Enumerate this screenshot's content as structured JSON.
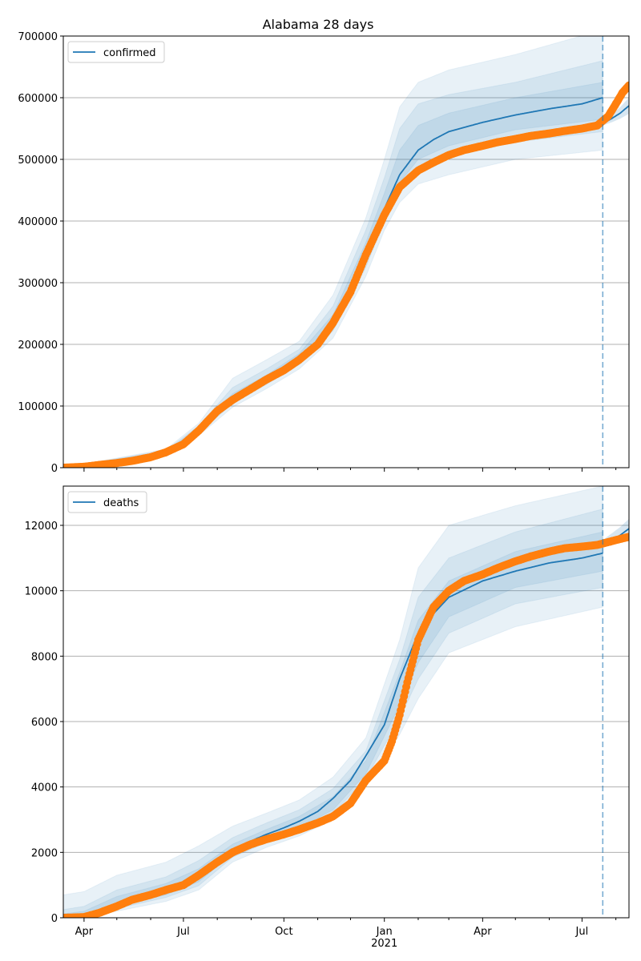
{
  "title": "Alabama 28 days",
  "colors": {
    "model": "#1f77b4",
    "observed": "#ff7f0e",
    "band": "#1f77b4",
    "grid": "#b0b0b0",
    "vline": "#1f77b4"
  },
  "x_axis": {
    "ticks": [
      "Apr",
      "Jul",
      "Oct",
      "Jan",
      "Apr",
      "Jul"
    ],
    "year_label": "2021",
    "xlim": [
      "2020-03-13",
      "2021-08-13"
    ],
    "forecast_start": "2021-07-20"
  },
  "chart_data": [
    {
      "type": "line",
      "series_label": "confirmed",
      "legend": "top-left",
      "grid": "horizontal",
      "ylim": [
        0,
        700000
      ],
      "yticks": [
        "0",
        "100000",
        "200000",
        "300000",
        "400000",
        "500000",
        "600000",
        "700000"
      ],
      "model_median": {
        "x": [
          "2020-03-13",
          "2020-04-15",
          "2020-05-15",
          "2020-06-15",
          "2020-07-01",
          "2020-07-15",
          "2020-08-01",
          "2020-08-15",
          "2020-09-01",
          "2020-09-15",
          "2020-10-01",
          "2020-10-15",
          "2020-11-01",
          "2020-11-15",
          "2020-12-01",
          "2020-12-15",
          "2021-01-01",
          "2021-01-15",
          "2021-02-01",
          "2021-02-15",
          "2021-03-01",
          "2021-04-01",
          "2021-05-01",
          "2021-06-01",
          "2021-07-01",
          "2021-07-20"
        ],
        "y": [
          0,
          5000,
          12000,
          25000,
          40000,
          62000,
          95000,
          112000,
          130000,
          145000,
          160000,
          178000,
          205000,
          240000,
          290000,
          350000,
          420000,
          475000,
          515000,
          532000,
          545000,
          560000,
          572000,
          582000,
          590000,
          600000
        ]
      },
      "bands": [
        {
          "x": [
            "2020-03-13",
            "2020-06-15",
            "2020-07-15",
            "2020-08-15",
            "2020-09-15",
            "2020-10-15",
            "2020-11-15",
            "2020-12-15",
            "2021-01-01",
            "2021-01-15",
            "2021-02-01",
            "2021-03-01",
            "2021-05-01",
            "2021-07-20"
          ],
          "lower": [
            0,
            20000,
            52000,
            98000,
            128000,
            160000,
            210000,
            310000,
            385000,
            430000,
            460000,
            475000,
            500000,
            515000
          ],
          "upper": [
            0,
            30000,
            72000,
            145000,
            175000,
            205000,
            280000,
            405000,
            500000,
            585000,
            625000,
            645000,
            670000,
            710000
          ]
        },
        {
          "x": [
            "2020-03-13",
            "2020-06-15",
            "2020-07-15",
            "2020-08-15",
            "2020-09-15",
            "2020-10-15",
            "2020-11-15",
            "2020-12-15",
            "2021-01-01",
            "2021-01-15",
            "2021-02-01",
            "2021-03-01",
            "2021-05-01",
            "2021-07-20"
          ],
          "lower": [
            0,
            22000,
            56000,
            104000,
            135000,
            167000,
            222000,
            325000,
            400000,
            450000,
            485000,
            505000,
            528000,
            545000
          ],
          "upper": [
            0,
            28000,
            68000,
            130000,
            160000,
            192000,
            262000,
            385000,
            470000,
            550000,
            590000,
            605000,
            625000,
            660000
          ]
        },
        {
          "x": [
            "2020-03-13",
            "2020-06-15",
            "2020-07-15",
            "2020-08-15",
            "2020-09-15",
            "2020-10-15",
            "2020-11-15",
            "2020-12-15",
            "2021-01-01",
            "2021-01-15",
            "2021-02-01",
            "2021-03-01",
            "2021-05-01",
            "2021-07-20"
          ],
          "lower": [
            0,
            23500,
            59000,
            108000,
            140000,
            172000,
            232000,
            338000,
            410000,
            462000,
            500000,
            522000,
            548000,
            565000
          ],
          "upper": [
            0,
            26500,
            65000,
            120000,
            150000,
            185000,
            248000,
            365000,
            445000,
            515000,
            555000,
            575000,
            600000,
            625000
          ]
        }
      ],
      "forecast": {
        "x": [
          "2021-07-20",
          "2021-07-28",
          "2021-08-05",
          "2021-08-13"
        ],
        "y": [
          558000,
          566000,
          575000,
          587000
        ],
        "lower": [
          555000,
          560000,
          566000,
          574000
        ],
        "upper": [
          562000,
          572000,
          585000,
          600000
        ]
      },
      "observed": {
        "x": [
          "2020-03-13",
          "2020-04-01",
          "2020-04-15",
          "2020-05-01",
          "2020-05-15",
          "2020-06-01",
          "2020-06-15",
          "2020-07-01",
          "2020-07-15",
          "2020-08-01",
          "2020-08-15",
          "2020-09-01",
          "2020-09-15",
          "2020-10-01",
          "2020-10-15",
          "2020-11-01",
          "2020-11-15",
          "2020-12-01",
          "2020-12-15",
          "2021-01-01",
          "2021-01-15",
          "2021-02-01",
          "2021-02-15",
          "2021-03-01",
          "2021-03-15",
          "2021-04-01",
          "2021-04-15",
          "2021-05-01",
          "2021-05-15",
          "2021-06-01",
          "2021-06-15",
          "2021-07-01",
          "2021-07-15",
          "2021-07-25",
          "2021-08-01",
          "2021-08-07",
          "2021-08-13"
        ],
        "y": [
          0,
          1500,
          4500,
          7500,
          11000,
          17000,
          25000,
          38000,
          60000,
          92000,
          110000,
          128000,
          143000,
          158000,
          175000,
          200000,
          235000,
          285000,
          345000,
          410000,
          455000,
          482000,
          495000,
          507000,
          515000,
          522000,
          528000,
          533000,
          538000,
          542000,
          546000,
          550000,
          555000,
          570000,
          590000,
          608000,
          620000
        ]
      }
    },
    {
      "type": "line",
      "series_label": "deaths",
      "legend": "top-left",
      "grid": "horizontal",
      "ylim": [
        0,
        13200
      ],
      "yticks": [
        "0",
        "2000",
        "4000",
        "6000",
        "8000",
        "10000",
        "12000"
      ],
      "model_median": {
        "x": [
          "2020-03-13",
          "2020-04-15",
          "2020-05-15",
          "2020-06-15",
          "2020-07-01",
          "2020-07-15",
          "2020-08-01",
          "2020-08-15",
          "2020-09-01",
          "2020-09-15",
          "2020-10-01",
          "2020-10-15",
          "2020-11-01",
          "2020-11-15",
          "2020-12-01",
          "2020-12-15",
          "2021-01-01",
          "2021-01-15",
          "2021-02-01",
          "2021-02-15",
          "2021-03-01",
          "2021-04-01",
          "2021-05-01",
          "2021-06-01",
          "2021-07-01",
          "2021-07-20"
        ],
        "y": [
          0,
          150,
          500,
          800,
          1000,
          1300,
          1750,
          2100,
          2350,
          2550,
          2750,
          2950,
          3250,
          3650,
          4200,
          4950,
          5900,
          7300,
          8700,
          9300,
          9800,
          10300,
          10600,
          10850,
          11000,
          11150
        ]
      },
      "bands": [
        {
          "x": [
            "2020-03-13",
            "2020-04-01",
            "2020-05-01",
            "2020-06-15",
            "2020-07-15",
            "2020-08-15",
            "2020-09-15",
            "2020-10-15",
            "2020-11-15",
            "2020-12-15",
            "2021-01-15",
            "2021-02-01",
            "2021-03-01",
            "2021-05-01",
            "2021-07-20"
          ],
          "lower": [
            0,
            0,
            200,
            500,
            850,
            1700,
            2150,
            2500,
            3000,
            4000,
            5600,
            6700,
            8100,
            8900,
            9500
          ],
          "upper": [
            700,
            800,
            1300,
            1700,
            2200,
            2800,
            3200,
            3600,
            4300,
            5500,
            8500,
            10700,
            12000,
            12600,
            13200
          ]
        },
        {
          "x": [
            "2020-03-13",
            "2020-04-01",
            "2020-05-01",
            "2020-06-15",
            "2020-07-15",
            "2020-08-15",
            "2020-09-15",
            "2020-10-15",
            "2020-11-15",
            "2020-12-15",
            "2021-01-15",
            "2021-02-01",
            "2021-03-01",
            "2021-05-01",
            "2021-07-20"
          ],
          "lower": [
            0,
            0,
            280,
            620,
            980,
            1850,
            2300,
            2650,
            3180,
            4250,
            6100,
            7300,
            8700,
            9600,
            10100
          ],
          "upper": [
            250,
            350,
            850,
            1250,
            1750,
            2450,
            2900,
            3300,
            3950,
            5100,
            7900,
            9800,
            11000,
            11800,
            12500
          ]
        },
        {
          "x": [
            "2020-03-13",
            "2020-04-01",
            "2020-05-01",
            "2020-06-15",
            "2020-07-15",
            "2020-08-15",
            "2020-09-15",
            "2020-10-15",
            "2020-11-15",
            "2020-12-15",
            "2021-01-15",
            "2021-02-01",
            "2021-03-01",
            "2021-05-01",
            "2021-07-20"
          ],
          "lower": [
            0,
            0,
            350,
            700,
            1100,
            1950,
            2400,
            2750,
            3300,
            4400,
            6500,
            7800,
            9200,
            10100,
            10600
          ],
          "upper": [
            120,
            200,
            650,
            1050,
            1500,
            2250,
            2700,
            3100,
            3700,
            4800,
            7500,
            9100,
            10300,
            11200,
            11800
          ]
        }
      ],
      "forecast": {
        "x": [
          "2021-07-20",
          "2021-07-28",
          "2021-08-05",
          "2021-08-13"
        ],
        "y": [
          11450,
          11550,
          11700,
          11900
        ],
        "lower": [
          11380,
          11420,
          11480,
          11560
        ],
        "upper": [
          11550,
          11750,
          11950,
          12200
        ]
      },
      "observed": {
        "x": [
          "2020-03-13",
          "2020-04-01",
          "2020-04-15",
          "2020-05-01",
          "2020-05-15",
          "2020-06-01",
          "2020-06-15",
          "2020-07-01",
          "2020-07-15",
          "2020-08-01",
          "2020-08-15",
          "2020-09-01",
          "2020-09-15",
          "2020-10-01",
          "2020-10-15",
          "2020-11-01",
          "2020-11-15",
          "2020-12-01",
          "2020-12-15",
          "2021-01-01",
          "2021-01-08",
          "2021-01-15",
          "2021-01-22",
          "2021-02-01",
          "2021-02-08",
          "2021-02-15",
          "2021-03-01",
          "2021-03-15",
          "2021-04-01",
          "2021-04-15",
          "2021-05-01",
          "2021-05-15",
          "2021-06-01",
          "2021-06-15",
          "2021-07-01",
          "2021-07-15",
          "2021-08-01",
          "2021-08-13"
        ],
        "y": [
          0,
          20,
          150,
          350,
          550,
          700,
          850,
          1000,
          1300,
          1700,
          2000,
          2250,
          2400,
          2550,
          2700,
          2900,
          3100,
          3500,
          4200,
          4800,
          5400,
          6200,
          7200,
          8500,
          9000,
          9500,
          10000,
          10300,
          10500,
          10700,
          10900,
          11050,
          11200,
          11300,
          11350,
          11400,
          11550,
          11650
        ]
      }
    }
  ]
}
